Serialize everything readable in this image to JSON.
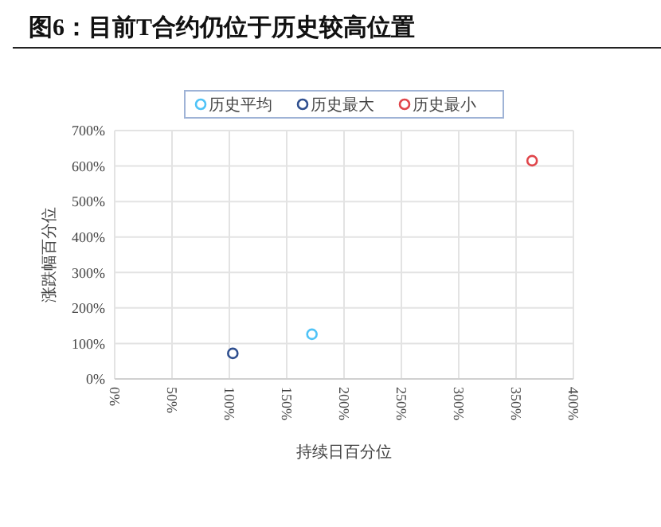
{
  "chart_data": {
    "type": "scatter",
    "title": "图6：目前T合约仍位于历史较高位置",
    "xlabel": "持续日百分位",
    "ylabel": "涨跌幅百分位",
    "series": [
      {
        "name": "历史平均",
        "color": "#4fc3f7",
        "x": [
          172
        ],
        "values": [
          126
        ]
      },
      {
        "name": "历史最大",
        "color": "#2f4f8f",
        "x": [
          103
        ],
        "values": [
          72
        ]
      },
      {
        "name": "历史最小",
        "color": "#e0454a",
        "x": [
          364
        ],
        "values": [
          615
        ]
      }
    ],
    "xlim": [
      0,
      400
    ],
    "xticks": [
      {
        "value": 0,
        "label": "0%"
      },
      {
        "value": 50,
        "label": "50%"
      },
      {
        "value": 100,
        "label": "100%"
      },
      {
        "value": 150,
        "label": "150%"
      },
      {
        "value": 200,
        "label": "200%"
      },
      {
        "value": 250,
        "label": "250%"
      },
      {
        "value": 300,
        "label": "300%"
      },
      {
        "value": 350,
        "label": "350%"
      },
      {
        "value": 400,
        "label": "400%"
      }
    ],
    "ylim": [
      0,
      700
    ],
    "yticks": [
      {
        "value": 0,
        "label": "0%"
      },
      {
        "value": 100,
        "label": "100%"
      },
      {
        "value": 200,
        "label": "200%"
      },
      {
        "value": 300,
        "label": "300%"
      },
      {
        "value": 400,
        "label": "400%"
      },
      {
        "value": 500,
        "label": "500%"
      },
      {
        "value": 600,
        "label": "600%"
      },
      {
        "value": 700,
        "label": "700%"
      }
    ],
    "grid": true,
    "legend": "top",
    "marker": "circle"
  }
}
